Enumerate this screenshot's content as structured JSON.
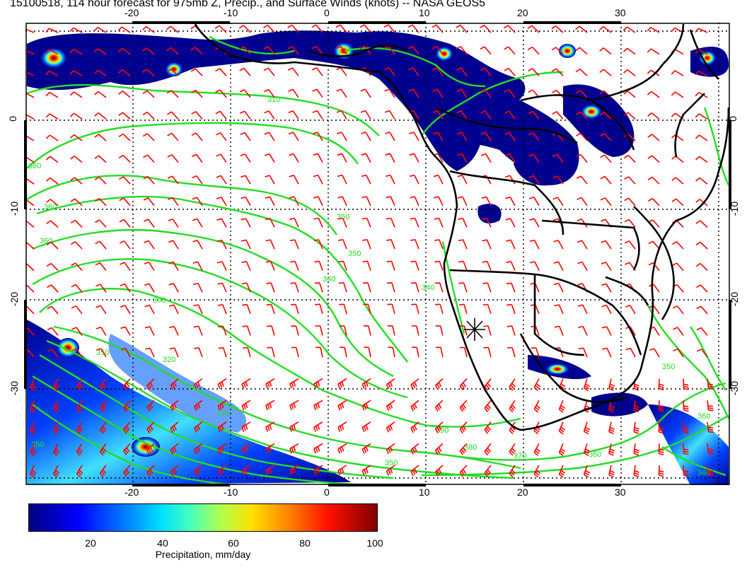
{
  "title": "15100518, 114 hour forecast for 975mb Z, Precip., and Surface Winds (knots) -- NASA GEOS5",
  "map": {
    "lon_ticks": [
      "-20",
      "-10",
      "0",
      "10",
      "20",
      "30"
    ],
    "lat_ticks": [
      "0",
      "-10",
      "-20",
      "-30"
    ],
    "lon_range": [
      -30,
      42
    ],
    "lat_range": [
      -40,
      11
    ],
    "contour_labels": [
      "390",
      "380",
      "370",
      "360",
      "350",
      "340",
      "330",
      "320",
      "310",
      "300"
    ],
    "colors": {
      "contour": "#22dd22",
      "wind_barb": "#ff0000",
      "coastline": "#000000",
      "land": "#ffffff",
      "ocean": "#ffffff"
    },
    "gridlines": "dotted",
    "marker": "cross"
  },
  "colorbar": {
    "label": "Precipitation, mm/day",
    "ticks": [
      "20",
      "40",
      "60",
      "80",
      "100"
    ],
    "min": 0,
    "max": 100
  }
}
